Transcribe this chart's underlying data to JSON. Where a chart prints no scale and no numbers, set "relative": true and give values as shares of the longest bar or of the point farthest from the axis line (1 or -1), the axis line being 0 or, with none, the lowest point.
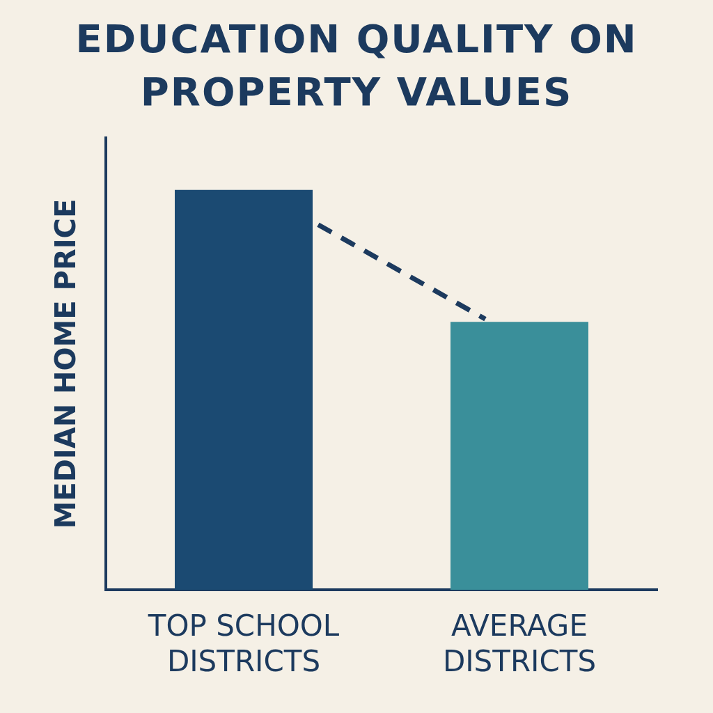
{
  "chart_data": {
    "type": "bar",
    "title": "EDUCATION QUALITY ON PROPERTY VALUES",
    "ylabel": "MEDIAN HOME PRICE",
    "categories": [
      "TOP SCHOOL DISTRICTS",
      "AVERAGE DISTRICTS"
    ],
    "values": [
      1,
      0.67
    ],
    "colors": [
      "#1b4a72",
      "#3a8f9a"
    ],
    "relative": true,
    "grid": false,
    "legend": false
  }
}
